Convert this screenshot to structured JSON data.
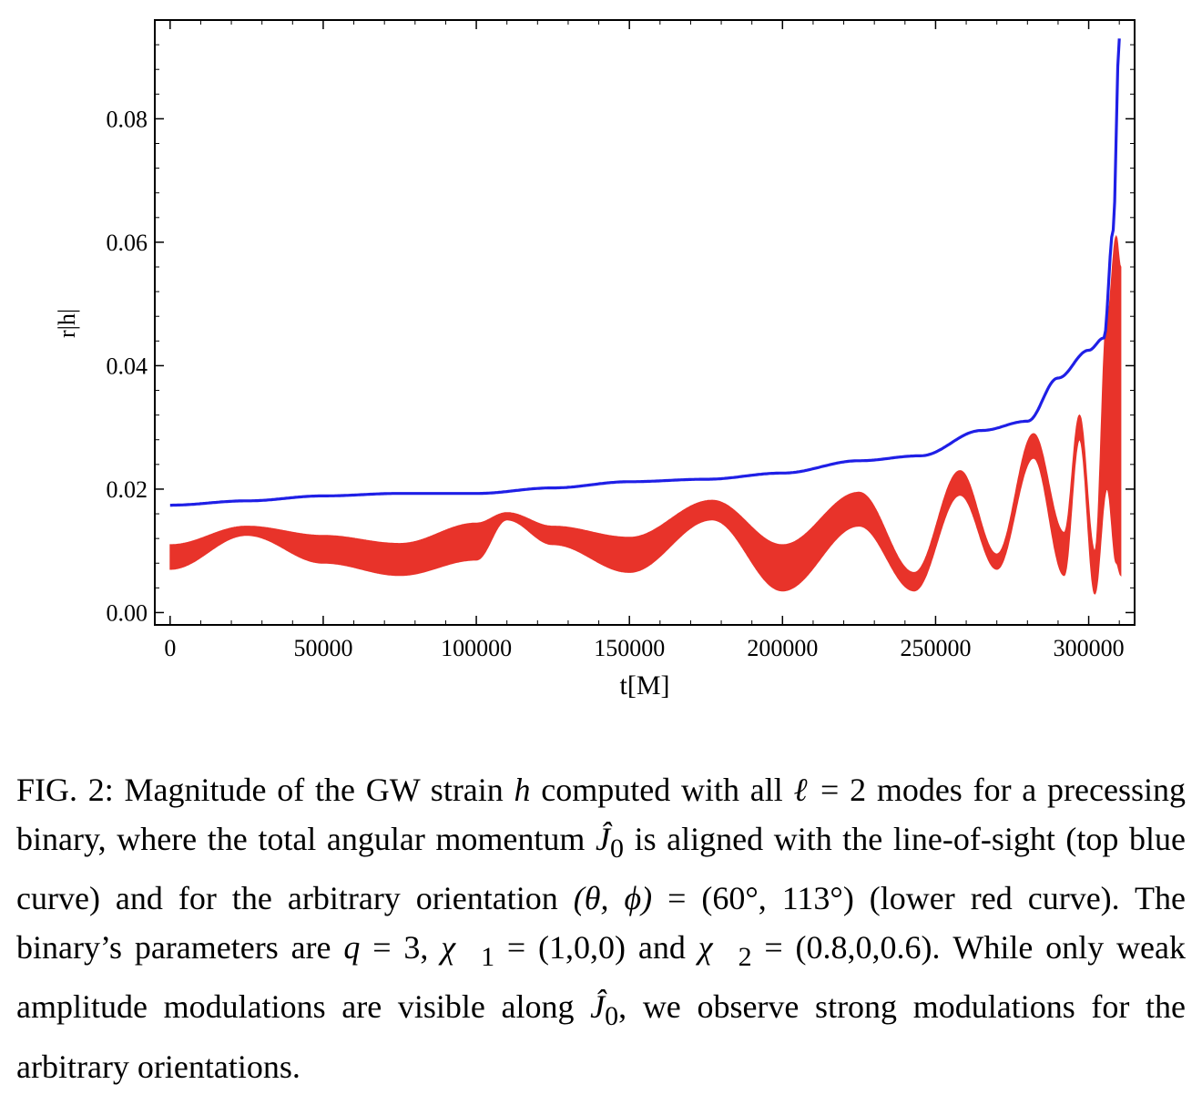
{
  "chart_data": {
    "type": "line",
    "xlabel": "t[M]",
    "ylabel": "r|h|",
    "xlim": [
      -5000,
      315000
    ],
    "ylim": [
      -0.002,
      0.096
    ],
    "xticks": [
      0,
      50000,
      100000,
      150000,
      200000,
      250000,
      300000
    ],
    "xtick_labels": [
      "0",
      "50000",
      "100000",
      "150000",
      "200000",
      "250000",
      "300000"
    ],
    "yticks": [
      0.0,
      0.02,
      0.04,
      0.06,
      0.08
    ],
    "ytick_labels": [
      "0.00",
      "0.02",
      "0.04",
      "0.06",
      "0.08"
    ],
    "grid": false,
    "series": [
      {
        "color": "#1f1fe6",
        "x": [
          0,
          25000,
          50000,
          75000,
          100000,
          125000,
          150000,
          175000,
          200000,
          225000,
          245000,
          265000,
          280000,
          290000,
          300000,
          305000,
          308000,
          310000
        ],
        "y": [
          0.0174,
          0.0181,
          0.0189,
          0.0193,
          0.0193,
          0.0202,
          0.0212,
          0.0216,
          0.0226,
          0.0246,
          0.0254,
          0.0295,
          0.031,
          0.038,
          0.0425,
          0.0445,
          0.062,
          0.093
        ]
      },
      {
        "color": "#e8332a",
        "x": [
          0,
          25000,
          50000,
          75000,
          100000,
          110000,
          125000,
          150000,
          177000,
          200000,
          225000,
          243000,
          258000,
          270000,
          282000,
          292000,
          297000,
          302000,
          306000,
          309000,
          310500
        ],
        "y_upper": [
          0.011,
          0.014,
          0.0125,
          0.0112,
          0.0145,
          0.0162,
          0.014,
          0.0122,
          0.0182,
          0.011,
          0.0195,
          0.0065,
          0.023,
          0.0095,
          0.029,
          0.013,
          0.032,
          0.01,
          0.048,
          0.061,
          0.056
        ],
        "y_lower": [
          0.007,
          0.0125,
          0.008,
          0.006,
          0.0085,
          0.015,
          0.011,
          0.0065,
          0.015,
          0.0035,
          0.014,
          0.0035,
          0.019,
          0.007,
          0.025,
          0.006,
          0.028,
          0.003,
          0.02,
          0.008,
          0.006
        ]
      }
    ]
  },
  "caption": {
    "label": "FIG. 2:",
    "text1": " Magnitude of the GW strain ",
    "h": "h",
    "text2": " computed with all ",
    "ell": "ℓ",
    "text3": " = 2 modes for a precessing binary, where the total angular momentum ",
    "J0": "Ĵ",
    "J0sub": "0",
    "text4": " is aligned with the line-of-sight (top blue curve) and for the arbitrary orientation ",
    "angles": "(θ, ϕ)",
    "text5": " = (60°, 113°) (lower red curve). The binary’s parameters are ",
    "q": "q",
    "text6": " = 3, ",
    "chi1": "χ⃗",
    "chi1sub": "1",
    "text7": " = (1,0,0) and ",
    "chi2": "χ⃗",
    "chi2sub": "2",
    "text8": " = (0.8,0,0.6). While only weak amplitude modulations are visible along ",
    "J0b": "Ĵ",
    "J0bsub": "0",
    "text9": ", we observe strong modulations for the arbitrary orientations."
  }
}
